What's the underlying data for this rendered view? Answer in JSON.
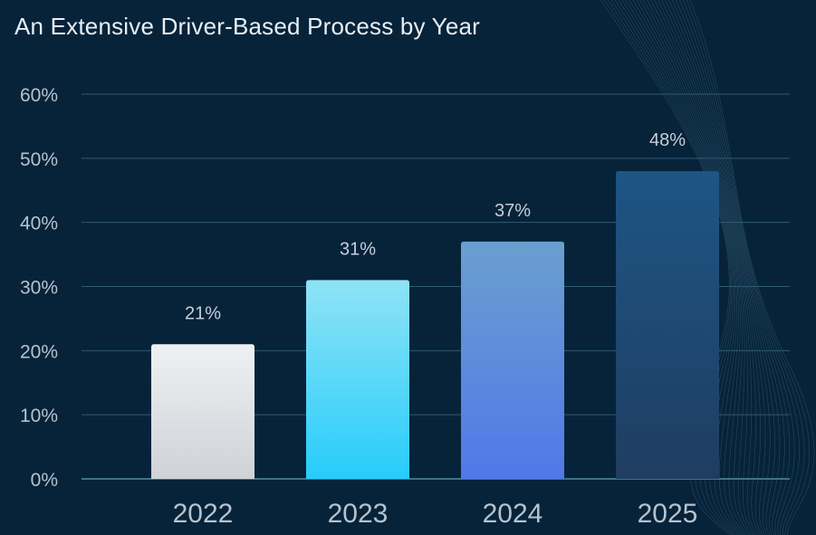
{
  "chart_data": {
    "type": "bar",
    "title": "An Extensive Driver-Based Process by Year",
    "categories": [
      "2022",
      "2023",
      "2024",
      "2025"
    ],
    "values": [
      21,
      31,
      37,
      48
    ],
    "data_labels": [
      "21%",
      "31%",
      "37%",
      "48%"
    ],
    "y_ticks": [
      0,
      10,
      20,
      30,
      40,
      50,
      60
    ],
    "y_tick_labels": [
      "0%",
      "10%",
      "20%",
      "30%",
      "40%",
      "50%",
      "60%"
    ],
    "ylim": [
      0,
      60
    ],
    "xlabel": "",
    "ylabel": "",
    "grid": true,
    "bar_gradients": [
      [
        "#eef1f4",
        "#cfd2d6"
      ],
      [
        "#8fe3f5",
        "#27ccfb"
      ],
      [
        "#6a9fcf",
        "#5178e8"
      ],
      [
        "#1d5584",
        "#1f3d61"
      ]
    ],
    "colors": {
      "background": "#06233a",
      "gridline": "#2f5a72",
      "axis_line": "#3f7386",
      "tick_text": "#b8c2cc",
      "label_text": "#c6cfd8",
      "title_text": "#e9eef3"
    }
  }
}
